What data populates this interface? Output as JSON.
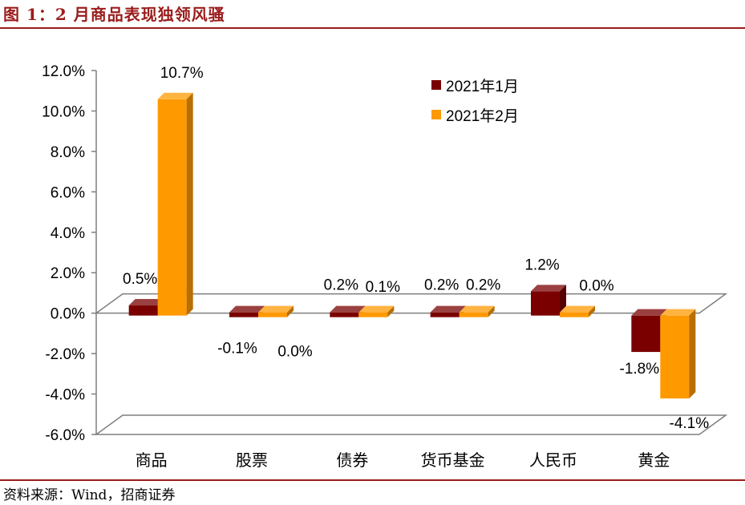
{
  "figure": {
    "title": "图 1：2 月商品表现独领风骚",
    "source": "资料来源：Wind，招商证券"
  },
  "colors": {
    "series1": "#7a0000",
    "series2": "#ff9900",
    "accent": "#9b1c1c"
  },
  "chart_data": {
    "type": "bar",
    "categories": [
      "商品",
      "股票",
      "债券",
      "货币基金",
      "人民币",
      "黄金"
    ],
    "series": [
      {
        "name": "2021年1月",
        "values": [
          0.5,
          -0.1,
          0.2,
          0.2,
          1.2,
          -1.8
        ],
        "labels": [
          "0.5%",
          "-0.1%",
          "0.2%",
          "0.2%",
          "1.2%",
          "-1.8%"
        ]
      },
      {
        "name": "2021年2月",
        "values": [
          10.7,
          0.0,
          0.1,
          0.2,
          0.0,
          -4.1
        ],
        "labels": [
          "10.7%",
          "0.0%",
          "0.1%",
          "0.2%",
          "0.0%",
          "-4.1%"
        ]
      }
    ],
    "ylim": [
      -6,
      12
    ],
    "yticks": [
      "12.0%",
      "10.0%",
      "8.0%",
      "6.0%",
      "4.0%",
      "2.0%",
      "0.0%",
      "-2.0%",
      "-4.0%",
      "-6.0%"
    ],
    "legend_position": "top-right",
    "style": "3d-clustered",
    "grid": false
  }
}
